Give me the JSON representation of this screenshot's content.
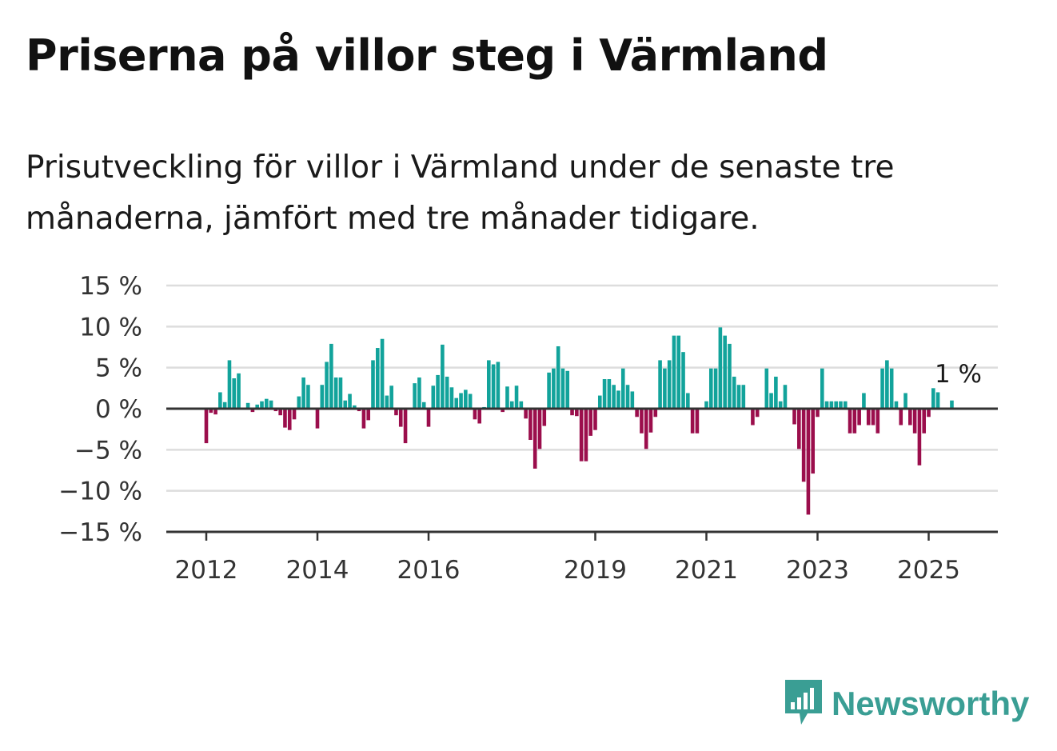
{
  "title": "Priserna på villor steg i Värmland",
  "subtitle": "Prisutveckling för villor i Värmland under de senaste tre månaderna, jämfört med tre månader tidigare.",
  "brand": {
    "name": "Newsworthy",
    "icon": "newsworthy-bar-chart-logo-icon"
  },
  "colors": {
    "positive": "#12a39b",
    "negative": "#9b0e4c",
    "grid": "#dddddd",
    "axis": "#333333"
  },
  "chart_data": {
    "type": "bar",
    "title": "Priserna på villor steg i Värmland",
    "subtitle": "Prisutveckling för villor i Värmland under de senaste tre månaderna, jämfört med tre månader tidigare.",
    "xlabel": "",
    "ylabel": "",
    "unit": "%",
    "ylim": [
      -15,
      15
    ],
    "yticks": [
      15,
      10,
      5,
      0,
      -5,
      -10,
      -15
    ],
    "ytick_labels": [
      "15 %",
      "10 %",
      "5 %",
      "0 %",
      "−5 %",
      "−10 %",
      "−15 %"
    ],
    "xticks": [
      2012,
      2014,
      2016,
      2019,
      2021,
      2023,
      2025
    ],
    "xtick_labels": [
      "2012",
      "2014",
      "2016",
      "2019",
      "2021",
      "2023",
      "2025"
    ],
    "grid": true,
    "start": "2012-01",
    "frequency": "monthly",
    "last_label": "1 %",
    "values": [
      -4.2,
      -0.5,
      -0.7,
      2.0,
      0.8,
      5.9,
      3.7,
      4.3,
      0.1,
      0.7,
      -0.4,
      0.5,
      0.9,
      1.2,
      1.0,
      -0.3,
      -0.8,
      -2.3,
      -2.6,
      -1.3,
      1.5,
      3.8,
      2.9,
      0.1,
      -2.4,
      2.9,
      5.7,
      7.9,
      3.8,
      3.8,
      1.0,
      1.8,
      0.4,
      -0.3,
      -2.4,
      -1.4,
      5.9,
      7.4,
      8.5,
      1.6,
      2.8,
      -0.8,
      -2.2,
      -4.2,
      0.1,
      3.1,
      3.8,
      0.8,
      -2.2,
      2.8,
      4.1,
      7.8,
      3.9,
      2.6,
      1.3,
      1.9,
      2.3,
      1.8,
      -1.3,
      -1.8,
      0.2,
      5.9,
      5.4,
      5.7,
      -0.4,
      2.7,
      0.9,
      2.8,
      0.9,
      -1.2,
      -3.8,
      -7.3,
      -4.9,
      -2.1,
      4.4,
      4.9,
      7.6,
      4.9,
      4.6,
      -0.8,
      -0.9,
      -6.4,
      -6.4,
      -3.3,
      -2.6,
      1.6,
      3.6,
      3.6,
      2.9,
      2.2,
      4.9,
      2.9,
      2.1,
      -1.0,
      -3.0,
      -4.9,
      -2.9,
      -1.0,
      5.9,
      4.9,
      5.9,
      8.9,
      8.9,
      6.9,
      1.9,
      -3.0,
      -3.0,
      0.1,
      0.9,
      4.9,
      4.9,
      9.9,
      8.9,
      7.9,
      3.9,
      2.9,
      2.9,
      0.1,
      -2.0,
      -1.0,
      0.1,
      4.9,
      1.9,
      3.9,
      0.9,
      2.9,
      0.1,
      -1.9,
      -4.9,
      -8.9,
      -12.9,
      -7.9,
      -1.0,
      4.9,
      0.9,
      0.9,
      0.9,
      0.9,
      0.9,
      -3.0,
      -3.0,
      -2.0,
      1.9,
      -2.0,
      -2.0,
      -3.0,
      4.9,
      5.9,
      4.9,
      0.9,
      -2.0,
      1.9,
      -2.0,
      -3.0,
      -6.9,
      -3.0,
      -1.0,
      2.5,
      2.0,
      0.1,
      0.1,
      1.0
    ]
  }
}
